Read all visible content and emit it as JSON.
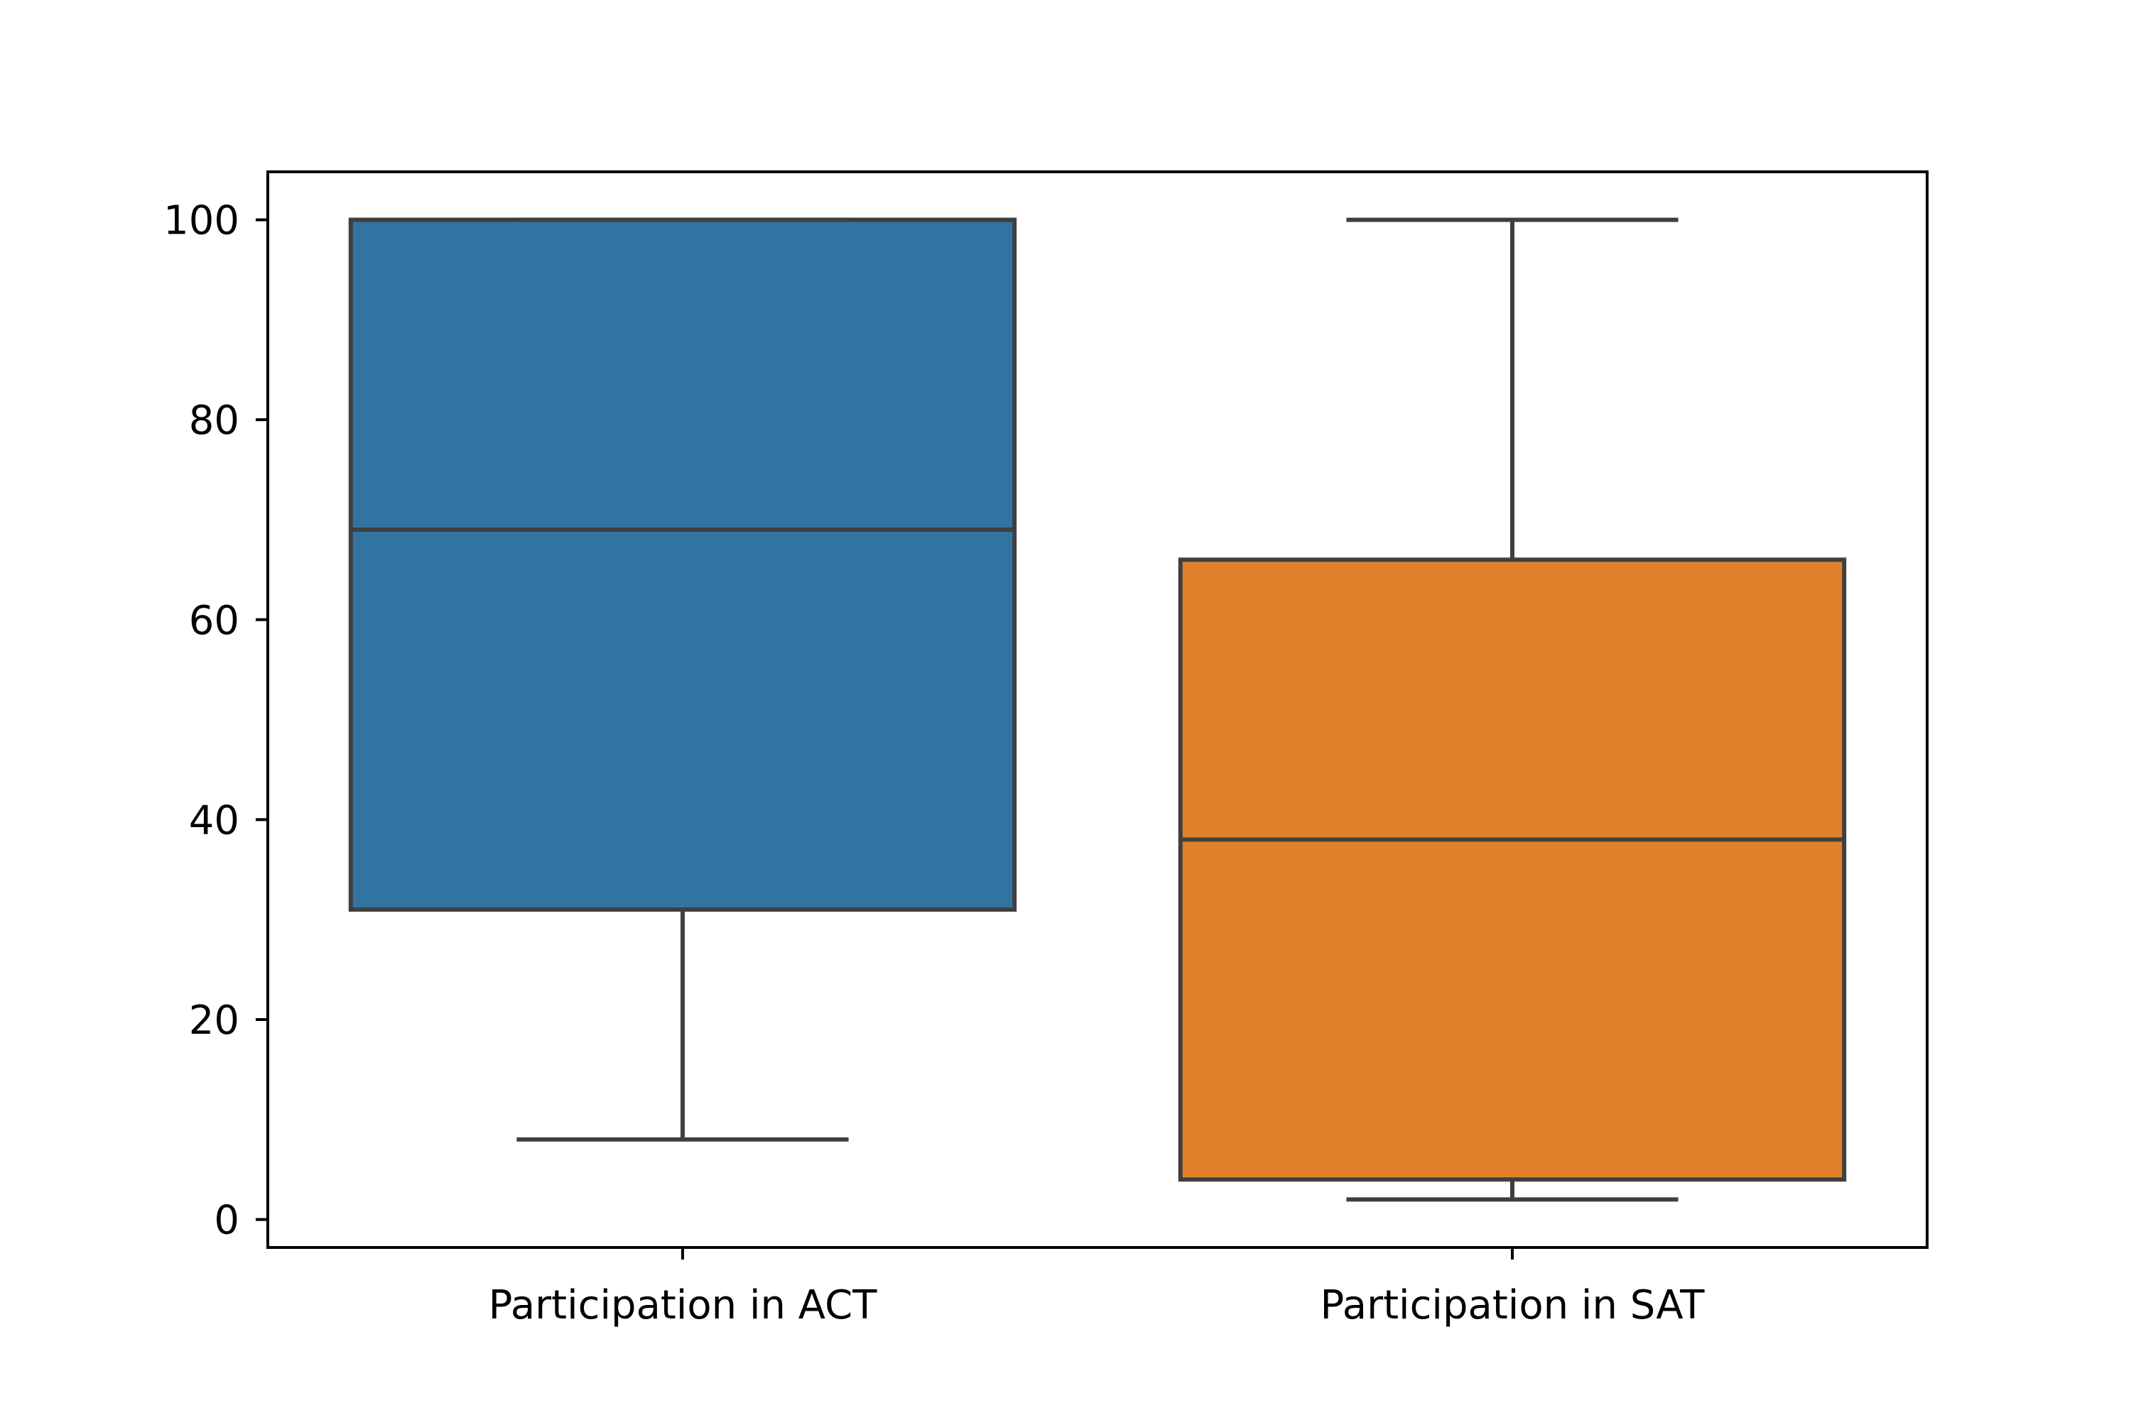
{
  "chart_data": {
    "type": "box",
    "categories": [
      "Participation in ACT",
      "Participation in SAT"
    ],
    "boxes": [
      {
        "name": "Participation in ACT",
        "whisker_low": 8,
        "q1": 31,
        "median": 69,
        "q3": 100,
        "whisker_high": 100,
        "color": "#3274a1"
      },
      {
        "name": "Participation in SAT",
        "whisker_low": 2,
        "q1": 4,
        "median": 38,
        "q3": 66,
        "whisker_high": 100,
        "color": "#e1812c"
      }
    ],
    "yticks": [
      0,
      20,
      40,
      60,
      80,
      100
    ],
    "ylim": [
      -2.8,
      104.8
    ],
    "title": "",
    "xlabel": "",
    "ylabel": "",
    "grid": false,
    "line_color": "#3f3f3f"
  }
}
